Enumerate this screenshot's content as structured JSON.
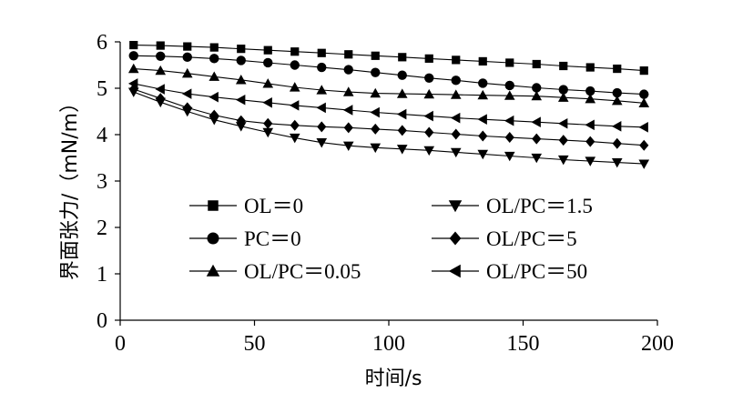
{
  "chart_data": {
    "type": "line",
    "xlabel": "时间/s",
    "ylabel": "界面张力/（mN/m）",
    "xlim": [
      0,
      200
    ],
    "ylim": [
      0,
      6
    ],
    "x_ticks": [
      0,
      50,
      100,
      150,
      200
    ],
    "y_ticks": [
      0,
      1,
      2,
      3,
      4,
      5,
      6
    ],
    "grid": false,
    "legend_position": "lower-left, two columns",
    "series": [
      {
        "name": "OL＝0",
        "marker": "square",
        "x": [
          5,
          15,
          25,
          35,
          45,
          55,
          65,
          75,
          85,
          95,
          105,
          115,
          125,
          135,
          145,
          155,
          165,
          175,
          185,
          195
        ],
        "y": [
          5.93,
          5.92,
          5.9,
          5.88,
          5.85,
          5.82,
          5.79,
          5.76,
          5.73,
          5.7,
          5.67,
          5.64,
          5.61,
          5.58,
          5.55,
          5.52,
          5.48,
          5.45,
          5.42,
          5.38
        ]
      },
      {
        "name": "PC＝0",
        "marker": "circle",
        "x": [
          5,
          15,
          25,
          35,
          45,
          55,
          65,
          75,
          85,
          95,
          105,
          115,
          125,
          135,
          145,
          155,
          165,
          175,
          185,
          195
        ],
        "y": [
          5.7,
          5.69,
          5.67,
          5.64,
          5.6,
          5.55,
          5.5,
          5.45,
          5.4,
          5.34,
          5.28,
          5.22,
          5.17,
          5.11,
          5.06,
          5.01,
          4.97,
          4.94,
          4.9,
          4.87
        ]
      },
      {
        "name": "OL/PC＝0.05",
        "marker": "triangle-up",
        "x": [
          5,
          15,
          25,
          35,
          45,
          55,
          65,
          75,
          85,
          95,
          105,
          115,
          125,
          135,
          145,
          155,
          165,
          175,
          185,
          195
        ],
        "y": [
          5.42,
          5.38,
          5.32,
          5.25,
          5.18,
          5.1,
          5.02,
          4.96,
          4.92,
          4.89,
          4.88,
          4.87,
          4.86,
          4.85,
          4.84,
          4.83,
          4.8,
          4.77,
          4.73,
          4.68
        ]
      },
      {
        "name": "OL/PC＝1.5",
        "marker": "triangle-down",
        "x": [
          5,
          15,
          25,
          35,
          45,
          55,
          65,
          75,
          85,
          95,
          105,
          115,
          125,
          135,
          145,
          155,
          165,
          175,
          185,
          195
        ],
        "y": [
          4.92,
          4.7,
          4.5,
          4.32,
          4.18,
          4.05,
          3.93,
          3.83,
          3.76,
          3.72,
          3.69,
          3.66,
          3.62,
          3.58,
          3.54,
          3.5,
          3.46,
          3.43,
          3.4,
          3.37
        ]
      },
      {
        "name": "OL/PC＝5",
        "marker": "diamond",
        "x": [
          5,
          15,
          25,
          35,
          45,
          55,
          65,
          75,
          85,
          95,
          105,
          115,
          125,
          135,
          145,
          155,
          165,
          175,
          185,
          195
        ],
        "y": [
          4.98,
          4.78,
          4.58,
          4.42,
          4.3,
          4.24,
          4.2,
          4.17,
          4.15,
          4.12,
          4.09,
          4.05,
          4.01,
          3.97,
          3.94,
          3.91,
          3.88,
          3.85,
          3.81,
          3.77
        ]
      },
      {
        "name": "OL/PC＝50",
        "marker": "triangle-left",
        "x": [
          5,
          15,
          25,
          35,
          45,
          55,
          65,
          75,
          85,
          95,
          105,
          115,
          125,
          135,
          145,
          155,
          165,
          175,
          185,
          195
        ],
        "y": [
          5.1,
          4.98,
          4.88,
          4.81,
          4.75,
          4.69,
          4.63,
          4.58,
          4.53,
          4.48,
          4.44,
          4.4,
          4.36,
          4.33,
          4.3,
          4.27,
          4.24,
          4.21,
          4.18,
          4.16
        ]
      }
    ]
  }
}
